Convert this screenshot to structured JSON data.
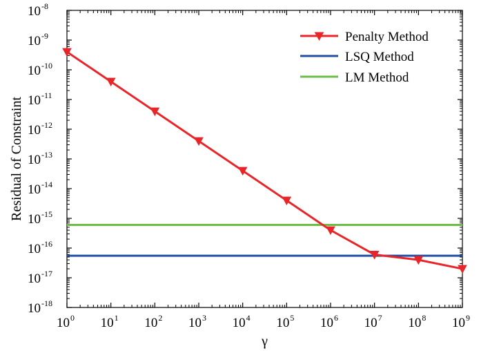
{
  "chart_data": {
    "type": "line",
    "title": "",
    "xlabel": "γ",
    "ylabel": "Residual of Constraint",
    "x_scale": "log",
    "y_scale": "log",
    "xlim": [
      1,
      1000000000
    ],
    "ylim": [
      1e-18,
      1e-08
    ],
    "x_ticks": [
      {
        "base": "10",
        "exp": "0",
        "value": 1
      },
      {
        "base": "10",
        "exp": "1",
        "value": 10
      },
      {
        "base": "10",
        "exp": "2",
        "value": 100
      },
      {
        "base": "10",
        "exp": "3",
        "value": 1000
      },
      {
        "base": "10",
        "exp": "4",
        "value": 10000
      },
      {
        "base": "10",
        "exp": "5",
        "value": 100000
      },
      {
        "base": "10",
        "exp": "6",
        "value": 1000000
      },
      {
        "base": "10",
        "exp": "7",
        "value": 10000000
      },
      {
        "base": "10",
        "exp": "8",
        "value": 100000000
      },
      {
        "base": "10",
        "exp": "9",
        "value": 1000000000
      }
    ],
    "y_ticks": [
      {
        "base": "10",
        "exp": "-18",
        "value": 1e-18
      },
      {
        "base": "10",
        "exp": "-17",
        "value": 1e-17
      },
      {
        "base": "10",
        "exp": "-16",
        "value": 1e-16
      },
      {
        "base": "10",
        "exp": "-15",
        "value": 1e-15
      },
      {
        "base": "10",
        "exp": "-14",
        "value": 1e-14
      },
      {
        "base": "10",
        "exp": "-13",
        "value": 1e-13
      },
      {
        "base": "10",
        "exp": "-12",
        "value": 1e-12
      },
      {
        "base": "10",
        "exp": "-11",
        "value": 1e-11
      },
      {
        "base": "10",
        "exp": "-10",
        "value": 1e-10
      },
      {
        "base": "10",
        "exp": "-9",
        "value": 1e-09
      },
      {
        "base": "10",
        "exp": "-8",
        "value": 1e-08
      }
    ],
    "grid": false,
    "legend_position": "top-right",
    "series": [
      {
        "name": "Penalty Method",
        "color": "#e8262a",
        "marker": "triangle-down",
        "x": [
          1,
          10,
          100,
          1000,
          10000,
          100000,
          1000000,
          10000000,
          100000000,
          1000000000
        ],
        "y": [
          4e-10,
          4e-11,
          4e-12,
          4e-13,
          4e-14,
          4e-15,
          4e-16,
          6e-17,
          4e-17,
          2e-17
        ]
      },
      {
        "name": "LSQ Method",
        "color": "#1f4ea3",
        "marker": "none",
        "x": [
          1,
          1000000000
        ],
        "y": [
          5.5e-17,
          5.5e-17
        ]
      },
      {
        "name": "LM Method",
        "color": "#6cbd45",
        "marker": "none",
        "x": [
          1,
          1000000000
        ],
        "y": [
          6e-16,
          6e-16
        ]
      }
    ]
  }
}
